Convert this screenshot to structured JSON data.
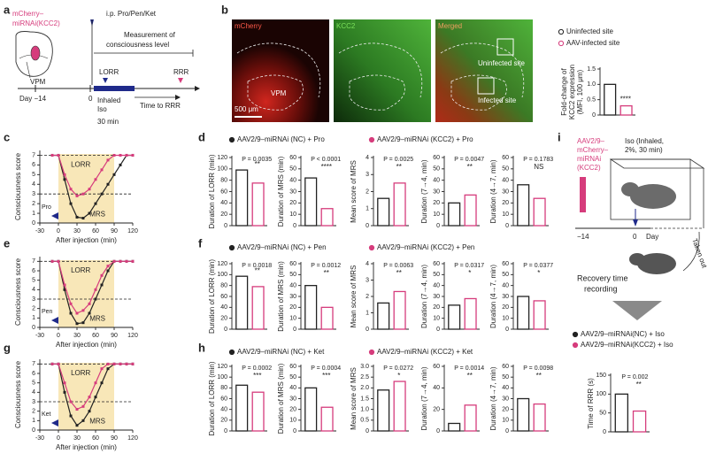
{
  "panel_letters": [
    "a",
    "b",
    "c",
    "d",
    "e",
    "f",
    "g",
    "h",
    "i"
  ],
  "schematic_a": {
    "construct": [
      "mCherry–",
      "miRNAi(KCC2)"
    ],
    "region": "VPM",
    "injection": "i.p. Pro/Pen/Ket",
    "measurement": [
      "Measurement of",
      "consciousness level"
    ],
    "lorr": "LORR",
    "rrr": "RRR",
    "day_start": "Day −14",
    "day_zero": "0",
    "iso": [
      "Inhaled",
      "Iso",
      "30 min"
    ],
    "time_to_rrr": "Time to RRR"
  },
  "images_b": {
    "channels": [
      "mCherry",
      "KCC2",
      "Merged"
    ],
    "region": "VPM",
    "uninfected": "Uninfected site",
    "infected": "Infected site",
    "scale_bar": "500 μm"
  },
  "schematic_i": {
    "construct": [
      "AAV2/9–",
      "mCherry–",
      "miRNAi",
      "(KCC2)"
    ],
    "iso": [
      "Iso (Inhaled,",
      "2%, 30 min)"
    ],
    "day_start": "−14",
    "day_zero": "0",
    "day": "Day",
    "taken_out": "Taken out",
    "recovery": [
      "Recovery time",
      "recording"
    ]
  },
  "legends": {
    "b": [
      {
        "label": "Uninfected site",
        "color": "#222222"
      },
      {
        "label": "AAV-infected site",
        "color": "#d63c7c"
      }
    ],
    "d": [
      {
        "label": "AAV2/9–miRNAi (NC) + Pro",
        "color": "#222222"
      },
      {
        "label": "AAV2/9–miRNAi (KCC2) + Pro",
        "color": "#d63c7c"
      }
    ],
    "f": [
      {
        "label": "AAV2/9–miRNAi (NC) + Pen",
        "color": "#222222"
      },
      {
        "label": "AAV2/9–miRNAi (KCC2) + Pen",
        "color": "#d63c7c"
      }
    ],
    "h": [
      {
        "label": "AAV2/9–miRNAi (NC) + Ket",
        "color": "#222222"
      },
      {
        "label": "AAV2/9–miRNAi (KCC2) + Ket",
        "color": "#d63c7c"
      }
    ],
    "i": [
      {
        "label": "AAV2/9–miRNAi(NC) + Iso",
        "color": "#222222"
      },
      {
        "label": "AAV2/9–miRNAi(KCC2) + Iso",
        "color": "#d63c7c"
      }
    ]
  },
  "chart_data": [
    {
      "type": "bar",
      "y_label": [
        "Fold-change of",
        "KCC2 expression",
        "(MFI, 100 μm)"
      ],
      "values": [
        1.0,
        0.3
      ],
      "colors": [
        "#222222",
        "#d63c7c"
      ],
      "ylim": [
        0,
        1.5
      ],
      "yticks": [
        0,
        0.5,
        {
          "value": 1,
          "label": "1.0"
        },
        1.5
      ],
      "significance": "****"
    },
    {
      "type": "line",
      "y_label": "Consciousness score",
      "x_label": "After injection (min)",
      "drug": "Pro",
      "annotations": [
        "LORR",
        "MRS"
      ],
      "x": [
        -10,
        0,
        10,
        20,
        30,
        40,
        50,
        60,
        70,
        80,
        90,
        100,
        110,
        120
      ],
      "series": [
        {
          "color": "#222222",
          "values": [
            7,
            7,
            4.5,
            2,
            0.6,
            0.5,
            1,
            2,
            3,
            4,
            5,
            6,
            7,
            7
          ]
        },
        {
          "color": "#d63c7c",
          "values": [
            7,
            7,
            5,
            3.5,
            2.8,
            3,
            3.5,
            4.5,
            5.5,
            6.5,
            7,
            7,
            7,
            7
          ]
        }
      ],
      "xlim": [
        -30,
        120
      ],
      "xticks": [
        -30,
        0,
        30,
        60,
        90,
        120
      ],
      "ylim": [
        0,
        7.5
      ],
      "yticks": [
        0,
        1,
        2,
        3,
        4,
        5,
        6,
        7
      ],
      "reference_lines": [
        7,
        3
      ]
    },
    {
      "type": "bar",
      "y_label": "Duration of LORR (min)",
      "values": [
        98,
        75
      ],
      "colors": [
        "#222222",
        "#d63c7c"
      ],
      "ylim": [
        0,
        120
      ],
      "yticks": [
        0,
        20,
        40,
        60,
        80,
        100,
        120
      ],
      "p_label": "P = 0.0035",
      "significance": "**"
    },
    {
      "type": "bar",
      "y_label": "Duration of MRS (min)",
      "values": [
        42,
        15
      ],
      "colors": [
        "#222222",
        "#d63c7c"
      ],
      "ylim": [
        0,
        60
      ],
      "yticks": [
        0,
        10,
        20,
        30,
        40,
        50,
        60
      ],
      "p_label": "P < 0.0001",
      "significance": "****"
    },
    {
      "type": "bar",
      "y_label": "Mean score of MRS",
      "values": [
        1.6,
        2.5
      ],
      "colors": [
        "#222222",
        "#d63c7c"
      ],
      "ylim": [
        0,
        4
      ],
      "yticks": [
        0,
        1,
        2,
        3,
        4
      ],
      "p_label": "P = 0.0025",
      "significance": "**"
    },
    {
      "type": "bar",
      "y_label": "Duration (7→4, min)",
      "values": [
        20,
        27
      ],
      "colors": [
        "#222222",
        "#d63c7c"
      ],
      "ylim": [
        0,
        60
      ],
      "yticks": [
        0,
        10,
        20,
        30,
        40,
        50,
        60
      ],
      "p_label": "P = 0.0047",
      "significance": "**"
    },
    {
      "type": "bar",
      "y_label": "Duration (4→7, min)",
      "values": [
        36,
        24
      ],
      "colors": [
        "#222222",
        "#d63c7c"
      ],
      "ylim": [
        0,
        60
      ],
      "yticks": [
        0,
        10,
        20,
        30,
        40,
        50,
        60
      ],
      "p_label": "P = 0.1783",
      "significance": "NS"
    },
    {
      "type": "line",
      "y_label": "Consciousness score",
      "x_label": "After injection (min)",
      "drug": "Pen",
      "annotations": [
        "LORR",
        "MRS"
      ],
      "x": [
        -10,
        0,
        10,
        20,
        30,
        40,
        50,
        60,
        70,
        80,
        90,
        100,
        110,
        120
      ],
      "series": [
        {
          "color": "#222222",
          "values": [
            7,
            7,
            4,
            1.5,
            0.4,
            0.5,
            1.5,
            3,
            4.5,
            6,
            7,
            7,
            7,
            7
          ]
        },
        {
          "color": "#d63c7c",
          "values": [
            7,
            7,
            4.5,
            2.5,
            1.5,
            1.8,
            2.5,
            4,
            5.5,
            6.5,
            7,
            7,
            7,
            7
          ]
        }
      ],
      "xlim": [
        -30,
        120
      ],
      "xticks": [
        -30,
        0,
        30,
        60,
        90,
        120
      ],
      "ylim": [
        0,
        7.5
      ],
      "yticks": [
        0,
        1,
        2,
        3,
        4,
        5,
        6,
        7
      ],
      "reference_lines": [
        7,
        3
      ]
    },
    {
      "type": "bar",
      "y_label": "Duration of LORR (min)",
      "values": [
        97,
        78
      ],
      "colors": [
        "#222222",
        "#d63c7c"
      ],
      "ylim": [
        0,
        120
      ],
      "yticks": [
        0,
        20,
        40,
        60,
        80,
        100,
        120
      ],
      "p_label": "P = 0.0018",
      "significance": "**"
    },
    {
      "type": "bar",
      "y_label": "Duration of MRS (min)",
      "values": [
        40,
        20
      ],
      "colors": [
        "#222222",
        "#d63c7c"
      ],
      "ylim": [
        0,
        60
      ],
      "yticks": [
        0,
        10,
        20,
        30,
        40,
        50,
        60
      ],
      "p_label": "P = 0.0012",
      "significance": "**"
    },
    {
      "type": "bar",
      "y_label": "Mean score of MRS",
      "values": [
        1.6,
        2.3
      ],
      "colors": [
        "#222222",
        "#d63c7c"
      ],
      "ylim": [
        0,
        4
      ],
      "yticks": [
        0,
        1,
        2,
        3,
        4
      ],
      "p_label": "P = 0.0063",
      "significance": "**"
    },
    {
      "type": "bar",
      "y_label": "Duration (7→4, min)",
      "values": [
        22,
        28
      ],
      "colors": [
        "#222222",
        "#d63c7c"
      ],
      "ylim": [
        0,
        60
      ],
      "yticks": [
        0,
        10,
        20,
        30,
        40,
        50,
        60
      ],
      "p_label": "P = 0.0317",
      "significance": "*"
    },
    {
      "type": "bar",
      "y_label": "Duration (4→7, min)",
      "values": [
        30,
        26
      ],
      "colors": [
        "#222222",
        "#d63c7c"
      ],
      "ylim": [
        0,
        60
      ],
      "yticks": [
        0,
        10,
        20,
        30,
        40,
        50,
        60
      ],
      "p_label": "P = 0.0377",
      "significance": "*"
    },
    {
      "type": "line",
      "y_label": "Consciousness score",
      "x_label": "After injection (min)",
      "drug": "Ket",
      "annotations": [
        "LORR",
        "MRS"
      ],
      "x": [
        -10,
        0,
        10,
        20,
        30,
        40,
        50,
        60,
        70,
        80,
        90,
        100,
        110,
        120
      ],
      "series": [
        {
          "color": "#222222",
          "values": [
            7,
            7,
            4,
            1.5,
            0.5,
            1,
            2,
            3.5,
            5,
            6.5,
            7,
            7,
            7,
            7
          ]
        },
        {
          "color": "#d63c7c",
          "values": [
            7,
            7,
            5,
            3,
            2.2,
            2.5,
            3.5,
            5,
            6.5,
            7,
            7,
            7,
            7,
            7
          ]
        }
      ],
      "xlim": [
        -30,
        120
      ],
      "xticks": [
        -30,
        0,
        30,
        60,
        90,
        120
      ],
      "ylim": [
        0,
        7.5
      ],
      "yticks": [
        0,
        1,
        2,
        3,
        4,
        5,
        6,
        7
      ],
      "reference_lines": [
        7,
        3
      ]
    },
    {
      "type": "bar",
      "y_label": "Duration of LORR (min)",
      "values": [
        85,
        72
      ],
      "colors": [
        "#222222",
        "#d63c7c"
      ],
      "ylim": [
        0,
        120
      ],
      "yticks": [
        0,
        20,
        40,
        60,
        80,
        100,
        120
      ],
      "p_label": "P = 0.0002",
      "significance": "***"
    },
    {
      "type": "bar",
      "y_label": "Duration of MRS (min)",
      "values": [
        40,
        22
      ],
      "colors": [
        "#222222",
        "#d63c7c"
      ],
      "ylim": [
        0,
        60
      ],
      "yticks": [
        0,
        10,
        20,
        30,
        40,
        50,
        60
      ],
      "p_label": "P = 0.0004",
      "significance": "***"
    },
    {
      "type": "bar",
      "y_label": "Mean score of MRS",
      "values": [
        1.9,
        2.3
      ],
      "colors": [
        "#222222",
        "#d63c7c"
      ],
      "ylim": [
        0,
        3
      ],
      "yticks": [
        0,
        0.5,
        {
          "value": 1,
          "label": "1.0"
        },
        1.5,
        {
          "value": 2,
          "label": "2.0"
        },
        2.5,
        {
          "value": 3,
          "label": "3.0"
        }
      ],
      "p_label": "P = 0.0272",
      "significance": "*"
    },
    {
      "type": "bar",
      "y_label": "Duration (7→4, min)",
      "values": [
        7,
        24
      ],
      "colors": [
        "#222222",
        "#d63c7c"
      ],
      "ylim": [
        0,
        60
      ],
      "yticks": [
        0,
        20,
        40,
        60
      ],
      "p_label": "P = 0.0014",
      "significance": "**"
    },
    {
      "type": "bar",
      "y_label": "Duration (4→7, min)",
      "values": [
        30,
        25
      ],
      "colors": [
        "#222222",
        "#d63c7c"
      ],
      "ylim": [
        0,
        60
      ],
      "yticks": [
        0,
        10,
        20,
        30,
        40,
        50,
        60
      ],
      "p_label": "P = 0.0098",
      "significance": "**"
    },
    {
      "type": "bar",
      "y_label": "Time of RRR (s)",
      "values": [
        100,
        55
      ],
      "colors": [
        "#222222",
        "#d63c7c"
      ],
      "ylim": [
        0,
        150
      ],
      "yticks": [
        0,
        50,
        100,
        150
      ],
      "p_label": "P = 0.002",
      "significance": "**"
    }
  ]
}
